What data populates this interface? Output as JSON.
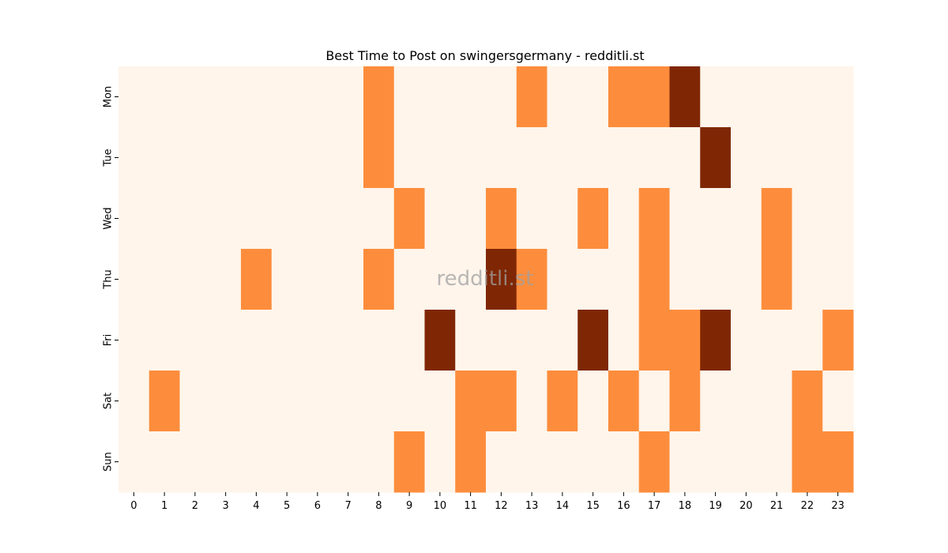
{
  "chart_data": {
    "type": "heatmap",
    "title": "Best Time to Post on swingersgermany - redditli.st",
    "xlabel": "",
    "ylabel": "",
    "x_categories": [
      "0",
      "1",
      "2",
      "3",
      "4",
      "5",
      "6",
      "7",
      "8",
      "9",
      "10",
      "11",
      "12",
      "13",
      "14",
      "15",
      "16",
      "17",
      "18",
      "19",
      "20",
      "21",
      "22",
      "23"
    ],
    "y_categories": [
      "Mon",
      "Tue",
      "Wed",
      "Thu",
      "Fri",
      "Sat",
      "Sun"
    ],
    "colormap": "Oranges",
    "values": [
      [
        0,
        0,
        0,
        0,
        0,
        0,
        0,
        0,
        1,
        0,
        0,
        0,
        0,
        1,
        0,
        0,
        1,
        1,
        2,
        0,
        0,
        0,
        0,
        0
      ],
      [
        0,
        0,
        0,
        0,
        0,
        0,
        0,
        0,
        1,
        0,
        0,
        0,
        0,
        0,
        0,
        0,
        0,
        0,
        0,
        2,
        0,
        0,
        0,
        0
      ],
      [
        0,
        0,
        0,
        0,
        0,
        0,
        0,
        0,
        0,
        1,
        0,
        0,
        1,
        0,
        0,
        1,
        0,
        1,
        0,
        0,
        0,
        1,
        0,
        0
      ],
      [
        0,
        0,
        0,
        0,
        1,
        0,
        0,
        0,
        1,
        0,
        0,
        0,
        2,
        1,
        0,
        0,
        0,
        1,
        0,
        0,
        0,
        1,
        0,
        0
      ],
      [
        0,
        0,
        0,
        0,
        0,
        0,
        0,
        0,
        0,
        0,
        2,
        0,
        0,
        0,
        0,
        2,
        0,
        1,
        1,
        2,
        0,
        0,
        0,
        1
      ],
      [
        0,
        1,
        0,
        0,
        0,
        0,
        0,
        0,
        0,
        0,
        0,
        1,
        1,
        0,
        1,
        0,
        1,
        0,
        1,
        0,
        0,
        0,
        1,
        0
      ],
      [
        0,
        0,
        0,
        0,
        0,
        0,
        0,
        0,
        0,
        1,
        0,
        1,
        0,
        0,
        0,
        0,
        0,
        1,
        0,
        0,
        0,
        0,
        1,
        1
      ]
    ],
    "value_range": [
      0,
      2
    ],
    "colors": {
      "low": "#fff5eb",
      "mid": "#fd8d3c",
      "high": "#7f2704"
    },
    "grid": false,
    "legend": "none",
    "watermark": "redditli.st"
  }
}
